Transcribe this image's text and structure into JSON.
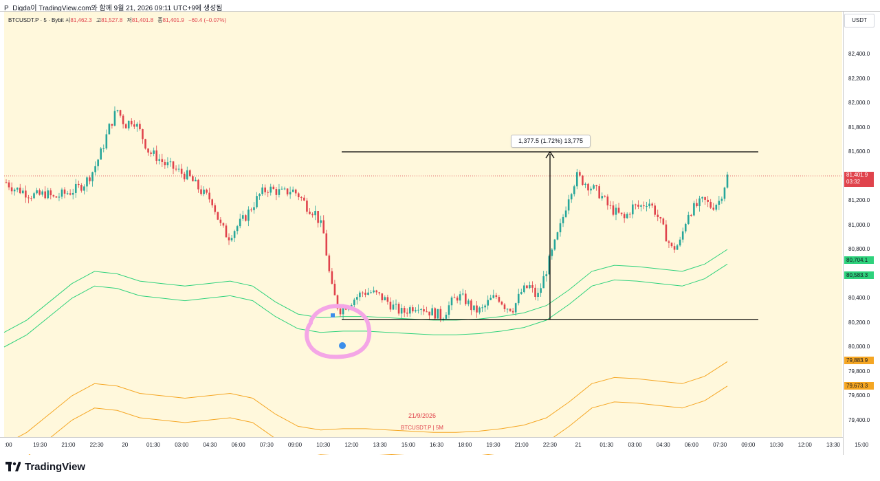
{
  "caption": "P_Digda이 TradingView.com와 함께 9월 21, 2026 09:11 UTC+9에 생성됨",
  "legend": {
    "symbol": "BTCUSDT.P · 5 · Bybit",
    "open_label": "시",
    "open": "81,462.3",
    "high_label": "고",
    "high": "81,527.8",
    "low_label": "저",
    "low": "81,401.8",
    "close_label": "종",
    "close": "81,401.9",
    "change": "−60.4 (−0.07%)"
  },
  "price_axis": {
    "currency": "USDT",
    "ticks": [
      "82,400.0",
      "82,200.0",
      "82,000.0",
      "81,800.0",
      "81,600.0",
      "81,200.0",
      "81,000.0",
      "80,800.0",
      "80,400.0",
      "80,200.0",
      "80,000.0",
      "79,800.0",
      "79,600.0",
      "79,400.0"
    ]
  },
  "price_tags": {
    "current_price": "81,401.9",
    "countdown": "03:32",
    "green_upper": "80,704.1",
    "green_lower": "80,583.3",
    "orange_upper": "79,883.9",
    "orange_lower": "79,673.3"
  },
  "time_axis": {
    "ticks": [
      ":00",
      "19:30",
      "21:00",
      "22:30",
      "20",
      "01:30",
      "03:00",
      "04:30",
      "06:00",
      "07:30",
      "09:00",
      "10:30",
      "12:00",
      "13:30",
      "15:00",
      "16:30",
      "18:00",
      "19:30",
      "21:00",
      "22:30",
      "21",
      "01:30",
      "03:00",
      "04:30",
      "06:00",
      "07:30",
      "09:00",
      "10:30",
      "12:00",
      "13:30",
      "15:00"
    ]
  },
  "measure": {
    "label": "1,377.5 (1.72%) 13,775"
  },
  "annotations": {
    "date": "21/9/2026",
    "symbol_interval": "BTCUSDT.P | 5M"
  },
  "branding": {
    "name": "TradingView"
  },
  "colors": {
    "background": "#fff8dc",
    "up": "#26a69a",
    "down": "#e0434c",
    "bands_green": "#2ed27c",
    "bands_orange": "#f5a623",
    "circle": "#f4a6e6",
    "marker_blue": "#3b8eea"
  },
  "chart_data": {
    "type": "candlestick",
    "ylim": [
      79400,
      82400
    ],
    "last_price": 81401.9,
    "range_box": {
      "high": 81600,
      "low": 80220,
      "change": 1377.5,
      "change_pct": 1.72,
      "ticks": 13775
    },
    "price_path": [
      81350,
      81300,
      81280,
      81250,
      81240,
      81260,
      81220,
      81250,
      81270,
      81300,
      81350,
      81450,
      81600,
      81800,
      81950,
      81820,
      81870,
      81750,
      81600,
      81560,
      81500,
      81470,
      81430,
      81400,
      81320,
      81250,
      81200,
      81000,
      80900,
      80980,
      81050,
      81150,
      81250,
      81300,
      81280,
      81260,
      81290,
      81240,
      81150,
      81100,
      80950,
      80500,
      80300,
      80350,
      80400,
      80450,
      80450,
      80420,
      80380,
      80320,
      80280,
      80320,
      80350,
      80300,
      80280,
      80250,
      80350,
      80420,
      80380,
      80300,
      80300,
      80380,
      80420,
      80330,
      80320,
      80450,
      80500,
      80400,
      80600,
      80800,
      81000,
      81250,
      81400,
      81350,
      81300,
      81250,
      81150,
      81100,
      81050,
      81150,
      81150,
      81200,
      81100,
      80950,
      80800,
      80850,
      81100,
      81150,
      81200,
      81150,
      81200,
      81400
    ]
  }
}
